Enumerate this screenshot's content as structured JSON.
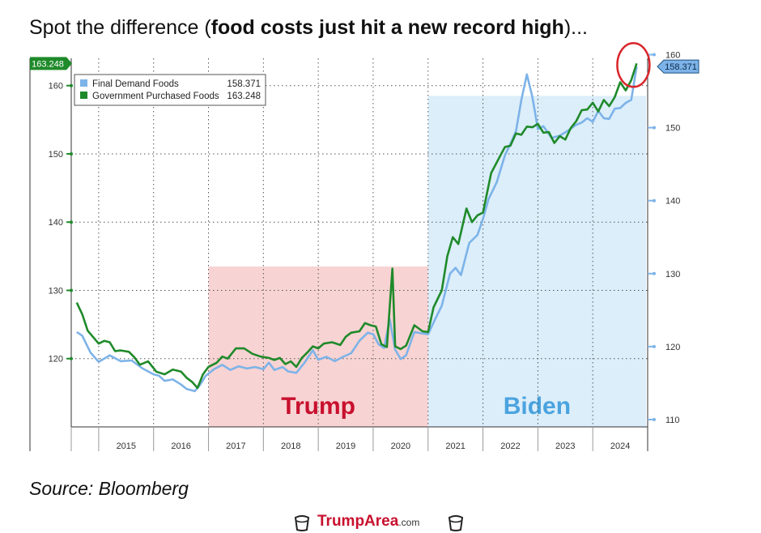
{
  "headline": {
    "prefix": "Spot the difference (",
    "bold": "food costs just hit a new record high",
    "suffix": ")..."
  },
  "source": "Source: Bloomberg",
  "watermark": {
    "brand": "TrumpArea",
    "tld": ".com",
    "icon": "cup-icon"
  },
  "chart_data": {
    "type": "line",
    "x_ticks": [
      "2015",
      "2016",
      "2017",
      "2018",
      "2019",
      "2020",
      "2021",
      "2022",
      "2023",
      "2024"
    ],
    "left_axis": {
      "ticks": [
        120,
        130,
        140,
        150,
        160
      ],
      "range": [
        110,
        164
      ]
    },
    "right_axis": {
      "ticks": [
        110,
        120,
        130,
        140,
        150,
        160
      ],
      "range": [
        109,
        159.5
      ]
    },
    "grid": true,
    "legend_position": "top-left",
    "series": [
      {
        "name": "Final Demand Foods",
        "last_value_label": "158.371",
        "color": "#7db3e8",
        "axis": "right",
        "points": [
          [
            2014.6,
            122.0
          ],
          [
            2014.7,
            121.5
          ],
          [
            2014.85,
            119.2
          ],
          [
            2015.0,
            117.9
          ],
          [
            2015.2,
            118.8
          ],
          [
            2015.4,
            118.0
          ],
          [
            2015.6,
            118.1
          ],
          [
            2015.8,
            117.0
          ],
          [
            2016.0,
            116.2
          ],
          [
            2016.1,
            116.0
          ],
          [
            2016.2,
            115.3
          ],
          [
            2016.35,
            115.5
          ],
          [
            2016.5,
            114.8
          ],
          [
            2016.6,
            114.2
          ],
          [
            2016.75,
            113.9
          ],
          [
            2016.85,
            114.8
          ],
          [
            2016.95,
            116.0
          ],
          [
            2017.1,
            116.9
          ],
          [
            2017.25,
            117.5
          ],
          [
            2017.4,
            116.8
          ],
          [
            2017.55,
            117.3
          ],
          [
            2017.7,
            117.0
          ],
          [
            2017.85,
            117.2
          ],
          [
            2018.0,
            116.9
          ],
          [
            2018.1,
            117.8
          ],
          [
            2018.2,
            116.8
          ],
          [
            2018.35,
            117.2
          ],
          [
            2018.45,
            116.6
          ],
          [
            2018.6,
            116.4
          ],
          [
            2018.75,
            117.8
          ],
          [
            2018.9,
            119.5
          ],
          [
            2019.0,
            118.2
          ],
          [
            2019.15,
            118.6
          ],
          [
            2019.3,
            118.0
          ],
          [
            2019.45,
            118.6
          ],
          [
            2019.6,
            119.1
          ],
          [
            2019.75,
            120.8
          ],
          [
            2019.9,
            121.9
          ],
          [
            2020.0,
            121.7
          ],
          [
            2020.1,
            120.3
          ],
          [
            2020.2,
            119.8
          ],
          [
            2020.3,
            123.8
          ],
          [
            2020.4,
            119.6
          ],
          [
            2020.5,
            118.3
          ],
          [
            2020.6,
            118.8
          ],
          [
            2020.75,
            122.0
          ],
          [
            2020.9,
            121.8
          ],
          [
            2021.0,
            121.7
          ],
          [
            2021.1,
            123.3
          ],
          [
            2021.25,
            125.6
          ],
          [
            2021.4,
            130.0
          ],
          [
            2021.5,
            130.8
          ],
          [
            2021.6,
            129.8
          ],
          [
            2021.75,
            134.2
          ],
          [
            2021.9,
            135.3
          ],
          [
            2022.0,
            137.5
          ],
          [
            2022.1,
            140.2
          ],
          [
            2022.25,
            142.5
          ],
          [
            2022.4,
            146.2
          ],
          [
            2022.5,
            147.8
          ],
          [
            2022.6,
            149.5
          ],
          [
            2022.7,
            153.8
          ],
          [
            2022.8,
            157.3
          ],
          [
            2022.9,
            154.2
          ],
          [
            2023.0,
            149.8
          ],
          [
            2023.1,
            150.2
          ],
          [
            2023.25,
            148.6
          ],
          [
            2023.4,
            148.9
          ],
          [
            2023.55,
            149.6
          ],
          [
            2023.7,
            150.4
          ],
          [
            2023.8,
            150.7
          ],
          [
            2023.9,
            151.3
          ],
          [
            2024.0,
            150.8
          ],
          [
            2024.1,
            152.3
          ],
          [
            2024.2,
            151.3
          ],
          [
            2024.3,
            151.2
          ],
          [
            2024.4,
            152.6
          ],
          [
            2024.5,
            152.7
          ],
          [
            2024.6,
            153.4
          ],
          [
            2024.7,
            153.8
          ],
          [
            2024.8,
            158.37
          ]
        ]
      },
      {
        "name": "Government Purchased Foods",
        "last_value_label": "163.248",
        "color": "#1f8a2a",
        "axis": "left",
        "points": [
          [
            2014.6,
            128.2
          ],
          [
            2014.7,
            126.5
          ],
          [
            2014.8,
            124.1
          ],
          [
            2015.0,
            122.2
          ],
          [
            2015.1,
            122.6
          ],
          [
            2015.2,
            122.4
          ],
          [
            2015.3,
            121.1
          ],
          [
            2015.4,
            121.2
          ],
          [
            2015.55,
            121.0
          ],
          [
            2015.65,
            120.2
          ],
          [
            2015.75,
            119.1
          ],
          [
            2015.9,
            119.6
          ],
          [
            2016.05,
            118.1
          ],
          [
            2016.2,
            117.7
          ],
          [
            2016.35,
            118.4
          ],
          [
            2016.5,
            118.1
          ],
          [
            2016.6,
            117.2
          ],
          [
            2016.7,
            116.6
          ],
          [
            2016.8,
            115.7
          ],
          [
            2016.9,
            117.7
          ],
          [
            2017.0,
            118.8
          ],
          [
            2017.15,
            119.4
          ],
          [
            2017.25,
            120.3
          ],
          [
            2017.35,
            120.0
          ],
          [
            2017.5,
            121.5
          ],
          [
            2017.65,
            121.5
          ],
          [
            2017.8,
            120.7
          ],
          [
            2017.95,
            120.3
          ],
          [
            2018.1,
            120.1
          ],
          [
            2018.2,
            119.8
          ],
          [
            2018.3,
            120.1
          ],
          [
            2018.4,
            119.2
          ],
          [
            2018.5,
            119.6
          ],
          [
            2018.6,
            118.8
          ],
          [
            2018.7,
            120.1
          ],
          [
            2018.8,
            120.9
          ],
          [
            2018.9,
            121.8
          ],
          [
            2019.0,
            121.5
          ],
          [
            2019.1,
            122.2
          ],
          [
            2019.25,
            122.4
          ],
          [
            2019.4,
            122.0
          ],
          [
            2019.5,
            123.2
          ],
          [
            2019.6,
            123.8
          ],
          [
            2019.75,
            124.0
          ],
          [
            2019.85,
            125.2
          ],
          [
            2019.95,
            124.9
          ],
          [
            2020.05,
            124.7
          ],
          [
            2020.15,
            122.1
          ],
          [
            2020.25,
            121.7
          ],
          [
            2020.35,
            133.2
          ],
          [
            2020.4,
            121.8
          ],
          [
            2020.5,
            121.4
          ],
          [
            2020.6,
            121.9
          ],
          [
            2020.75,
            124.9
          ],
          [
            2020.9,
            124.0
          ],
          [
            2021.0,
            123.9
          ],
          [
            2021.1,
            127.5
          ],
          [
            2021.25,
            130.0
          ],
          [
            2021.35,
            135.0
          ],
          [
            2021.45,
            137.8
          ],
          [
            2021.55,
            136.8
          ],
          [
            2021.7,
            142.0
          ],
          [
            2021.8,
            140.0
          ],
          [
            2021.9,
            141.0
          ],
          [
            2022.0,
            141.4
          ],
          [
            2022.15,
            147.2
          ],
          [
            2022.3,
            149.5
          ],
          [
            2022.4,
            151.0
          ],
          [
            2022.5,
            151.2
          ],
          [
            2022.6,
            153.0
          ],
          [
            2022.7,
            152.8
          ],
          [
            2022.8,
            154.0
          ],
          [
            2022.9,
            153.9
          ],
          [
            2023.0,
            154.4
          ],
          [
            2023.1,
            153.1
          ],
          [
            2023.2,
            153.2
          ],
          [
            2023.3,
            151.6
          ],
          [
            2023.4,
            152.6
          ],
          [
            2023.5,
            152.1
          ],
          [
            2023.6,
            153.8
          ],
          [
            2023.7,
            154.8
          ],
          [
            2023.8,
            156.4
          ],
          [
            2023.9,
            156.5
          ],
          [
            2024.0,
            157.5
          ],
          [
            2024.1,
            156.2
          ],
          [
            2024.2,
            157.9
          ],
          [
            2024.3,
            157.0
          ],
          [
            2024.4,
            158.3
          ],
          [
            2024.5,
            160.5
          ],
          [
            2024.6,
            159.3
          ],
          [
            2024.7,
            160.8
          ],
          [
            2024.8,
            163.25
          ]
        ]
      }
    ],
    "regions": [
      {
        "label": "Trump",
        "from": 2017.0,
        "to": 2021.0,
        "color": "#f8d3d3",
        "text_color": "#c8102e"
      },
      {
        "label": "Biden",
        "from": 2021.0,
        "to": 2025.0,
        "color": "#dbeefa",
        "text_color": "#4aa3df"
      }
    ],
    "annotation": {
      "type": "circle",
      "color": "#d9262c"
    }
  }
}
